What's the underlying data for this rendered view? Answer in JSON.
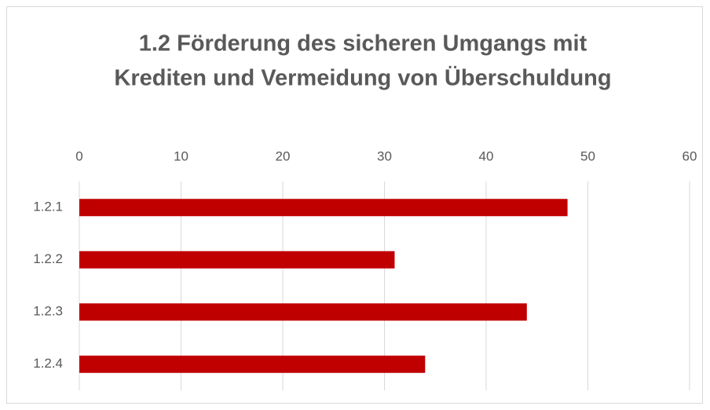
{
  "chart_data": {
    "type": "hbar",
    "title": [
      "1.2 Förderung des sicheren Umgangs mit",
      "Krediten und Vermeidung von Überschuldung"
    ],
    "categories": [
      "1.2.1",
      "1.2.2",
      "1.2.3",
      "1.2.4"
    ],
    "values": [
      48,
      31,
      44,
      34
    ],
    "color": "#c00000",
    "xlim": [
      0,
      60
    ],
    "xticks": [
      0,
      10,
      20,
      30,
      40,
      50,
      60
    ],
    "grid": true
  }
}
